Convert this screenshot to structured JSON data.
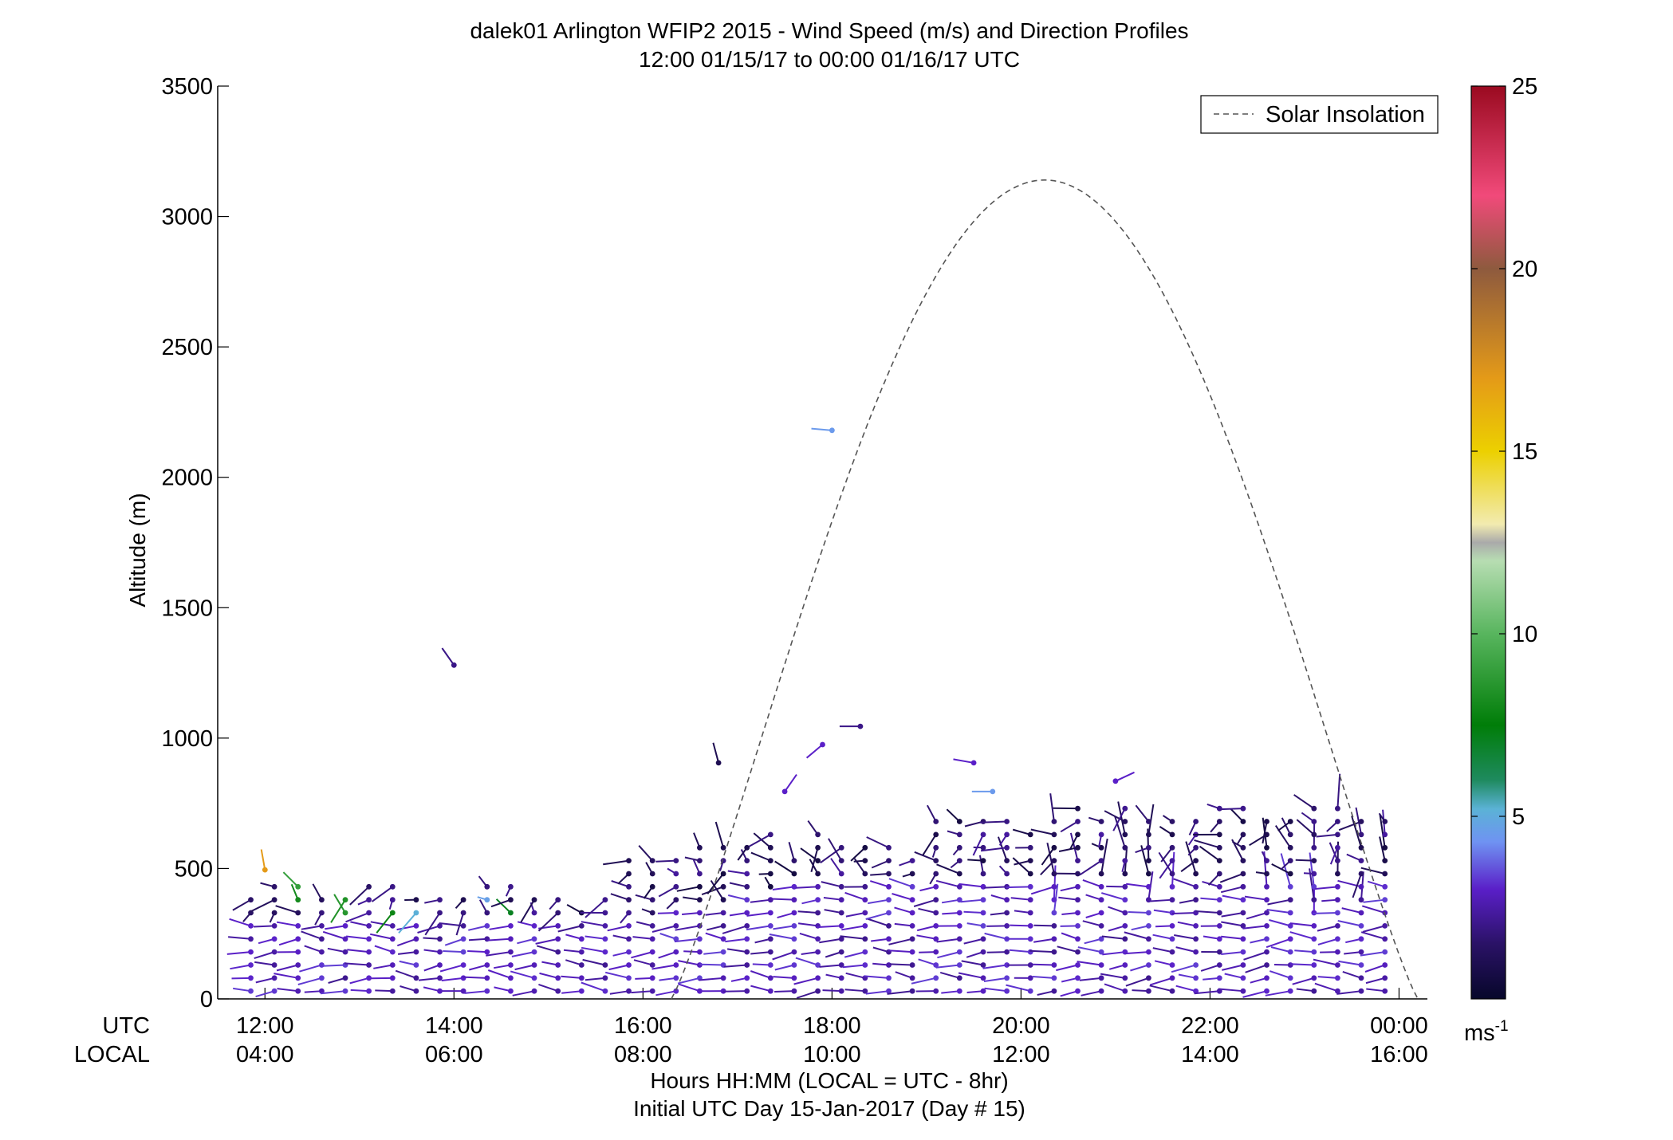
{
  "chart_data": {
    "type": "scatter",
    "title": "dalek01 Arlington WFIP2 2015 - Wind Speed (m/s) and Direction Profiles",
    "subtitle": "12:00 01/15/17 to 00:00 01/16/17  UTC",
    "ylabel": "Altitude (m)",
    "xlabel": "Hours HH:MM  (LOCAL = UTC - 8hr)",
    "xlabel2": "Initial UTC Day 15-Jan-2017 (Day # 15)",
    "utc_row_label": "UTC",
    "local_row_label": "LOCAL",
    "xlim_hours_utc": [
      11.5,
      24.3
    ],
    "ylim": [
      0,
      3500
    ],
    "y_ticks": [
      0,
      500,
      1000,
      1500,
      2000,
      2500,
      3000,
      3500
    ],
    "y_tick_labels": [
      "0",
      "500",
      "1000",
      "1500",
      "2000",
      "2500",
      "3000",
      "3500"
    ],
    "x_ticks_hours_utc": [
      12,
      14,
      16,
      18,
      20,
      22,
      24
    ],
    "utc_tick_labels": [
      "12:00",
      "14:00",
      "16:00",
      "18:00",
      "20:00",
      "22:00",
      "00:00"
    ],
    "local_tick_labels": [
      "04:00",
      "06:00",
      "08:00",
      "10:00",
      "12:00",
      "14:00",
      "16:00"
    ],
    "legend": {
      "label": "Solar Insolation",
      "position": "top-right"
    },
    "solar_insolation": {
      "start_hour_utc": 16.3,
      "end_hour_utc": 24.2,
      "peak_hour_utc": 20.0,
      "peak_value": 3140,
      "line_style": "dashed",
      "color": "#555555"
    },
    "colorbar": {
      "min": 0,
      "max": 25,
      "ticks": [
        5,
        10,
        15,
        20,
        25
      ],
      "tick_labels": [
        "5",
        "10",
        "15",
        "20",
        "25"
      ],
      "unit_base": "ms",
      "unit_exponent": "-1",
      "color_stops": [
        {
          "v": 0,
          "c": "#07072a"
        },
        {
          "v": 1.5,
          "c": "#2a1266"
        },
        {
          "v": 3,
          "c": "#5a1fc8"
        },
        {
          "v": 4.3,
          "c": "#6f93f2"
        },
        {
          "v": 5.2,
          "c": "#5bb2d6"
        },
        {
          "v": 6,
          "c": "#1e8a5e"
        },
        {
          "v": 7.5,
          "c": "#007d08"
        },
        {
          "v": 10,
          "c": "#58b55e"
        },
        {
          "v": 12,
          "c": "#b7ddb2"
        },
        {
          "v": 12.5,
          "c": "#aaaaaa"
        },
        {
          "v": 13,
          "c": "#f2ebb0"
        },
        {
          "v": 15,
          "c": "#ecd000"
        },
        {
          "v": 17,
          "c": "#e49a18"
        },
        {
          "v": 20,
          "c": "#8e5a3e"
        },
        {
          "v": 22,
          "c": "#f14a7a"
        },
        {
          "v": 25,
          "c": "#9a0a20"
        }
      ]
    },
    "wind_profiles": {
      "time_step_minutes": 15,
      "height_step_m": 50,
      "typical_speed_ms": "1-3",
      "profile_top_m_examples": [
        {
          "hour_utc": 12.0,
          "top_m": 440
        },
        {
          "hour_utc": 15.5,
          "top_m": 380
        },
        {
          "hour_utc": 16.5,
          "top_m": 620
        },
        {
          "hour_utc": 19.5,
          "top_m": 720
        },
        {
          "hour_utc": 21.0,
          "top_m": 700
        },
        {
          "hour_utc": 23.5,
          "top_m": 750
        }
      ],
      "isolated_barbs": [
        {
          "hour_utc": 14.0,
          "alt_m": 1280,
          "speed_ms": 2
        },
        {
          "hour_utc": 18.0,
          "alt_m": 2180,
          "speed_ms": 4.5
        },
        {
          "hour_utc": 18.3,
          "alt_m": 1045,
          "speed_ms": 2
        },
        {
          "hour_utc": 17.9,
          "alt_m": 975,
          "speed_ms": 3
        },
        {
          "hour_utc": 16.8,
          "alt_m": 905,
          "speed_ms": 1
        },
        {
          "hour_utc": 17.5,
          "alt_m": 795,
          "speed_ms": 3
        },
        {
          "hour_utc": 19.5,
          "alt_m": 905,
          "speed_ms": 3
        },
        {
          "hour_utc": 19.7,
          "alt_m": 795,
          "speed_ms": 4.5
        },
        {
          "hour_utc": 21.0,
          "alt_m": 835,
          "speed_ms": 3
        },
        {
          "hour_utc": 12.0,
          "alt_m": 495,
          "speed_ms": 17
        }
      ]
    }
  }
}
